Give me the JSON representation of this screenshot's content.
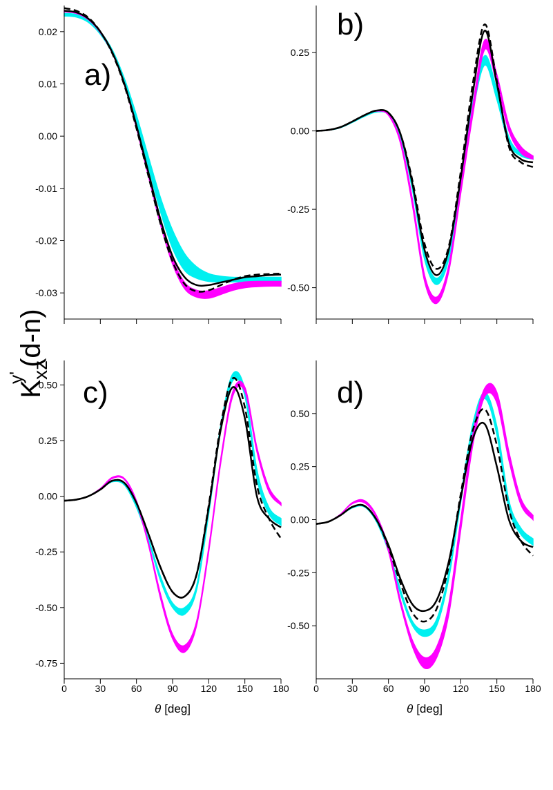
{
  "figure": {
    "ylabel": {
      "main": "K",
      "sub": "xz",
      "sup": "y'",
      "rest": "(d-n)"
    }
  },
  "chart_data": [
    {
      "type": "band-line",
      "panel_label": "a)",
      "show_xtick_labels": false,
      "x": [
        0,
        10,
        20,
        30,
        40,
        50,
        60,
        70,
        80,
        90,
        100,
        110,
        120,
        130,
        140,
        150,
        160,
        170,
        180
      ],
      "xlim": [
        0,
        180
      ],
      "xticks": [
        0,
        30,
        60,
        90,
        120,
        150,
        180
      ],
      "ylim": [
        -0.035,
        0.025
      ],
      "yticks": [
        -0.03,
        -0.02,
        -0.01,
        {
          "value": 0,
          "label": "0.00"
        },
        0.01,
        0.02
      ],
      "series": [
        {
          "kind": "band",
          "color": "#00f0f0",
          "lower": [
            0.023,
            0.0228,
            0.0218,
            0.0195,
            0.0158,
            0.01,
            0.0025,
            -0.006,
            -0.0145,
            -0.0215,
            -0.0257,
            -0.0272,
            -0.0278,
            -0.0279,
            -0.0279,
            -0.0279,
            -0.0279,
            -0.0279,
            -0.0279
          ],
          "upper": [
            0.0235,
            0.0233,
            0.0222,
            0.02,
            0.0165,
            0.011,
            0.004,
            -0.004,
            -0.0118,
            -0.018,
            -0.0225,
            -0.025,
            -0.0263,
            -0.0268,
            -0.027,
            -0.027,
            -0.027,
            -0.027,
            -0.027
          ]
        },
        {
          "kind": "band",
          "color": "#ff00ff",
          "lower": [
            0.0238,
            0.0235,
            0.0223,
            0.0198,
            0.0158,
            0.0098,
            0.0015,
            -0.0078,
            -0.017,
            -0.0245,
            -0.0292,
            -0.0308,
            -0.031,
            -0.0303,
            -0.0295,
            -0.029,
            -0.0288,
            -0.0287,
            -0.0287
          ],
          "upper": [
            0.024,
            0.0237,
            0.0225,
            0.02,
            0.016,
            0.01,
            0.0018,
            -0.0073,
            -0.0163,
            -0.0235,
            -0.028,
            -0.0295,
            -0.0296,
            -0.029,
            -0.0283,
            -0.0279,
            -0.0278,
            -0.0278,
            -0.0278
          ]
        },
        {
          "kind": "line",
          "color": "#000000",
          "dash": false,
          "values": [
            0.024,
            0.0237,
            0.0225,
            0.02,
            0.016,
            0.01,
            0.002,
            -0.007,
            -0.016,
            -0.023,
            -0.027,
            -0.0285,
            -0.0285,
            -0.028,
            -0.0275,
            -0.027,
            -0.0268,
            -0.0266,
            -0.0265
          ]
        },
        {
          "kind": "line",
          "color": "#000000",
          "dash": true,
          "values": [
            0.0245,
            0.024,
            0.0227,
            0.02,
            0.0158,
            0.0097,
            0.0015,
            -0.0077,
            -0.0168,
            -0.024,
            -0.0283,
            -0.0297,
            -0.0295,
            -0.0285,
            -0.0275,
            -0.0268,
            -0.0265,
            -0.0264,
            -0.0263
          ]
        }
      ]
    },
    {
      "type": "band-line",
      "panel_label": "b)",
      "show_xtick_labels": false,
      "x": [
        0,
        10,
        20,
        30,
        40,
        50,
        60,
        70,
        80,
        90,
        100,
        110,
        120,
        130,
        140,
        150,
        160,
        170,
        180
      ],
      "xlim": [
        0,
        180
      ],
      "xticks": [
        0,
        30,
        60,
        90,
        120,
        150,
        180
      ],
      "ylim": [
        -0.6,
        0.4
      ],
      "yticks": [
        {
          "value": -0.5,
          "label": "-0.50"
        },
        -0.25,
        {
          "value": 0,
          "label": "0.00"
        },
        0.25
      ],
      "series": [
        {
          "kind": "band",
          "color": "#00f0f0",
          "lower": [
            0,
            0.002,
            0.01,
            0.027,
            0.046,
            0.06,
            0.052,
            -0.02,
            -0.19,
            -0.41,
            -0.49,
            -0.41,
            -0.18,
            0.06,
            0.21,
            0.1,
            -0.04,
            -0.08,
            -0.09
          ],
          "upper": [
            0,
            0.003,
            0.012,
            0.03,
            0.05,
            0.064,
            0.057,
            -0.01,
            -0.17,
            -0.39,
            -0.47,
            -0.39,
            -0.16,
            0.09,
            0.24,
            0.13,
            -0.02,
            -0.07,
            -0.08
          ]
        },
        {
          "kind": "band",
          "color": "#ff00ff",
          "lower": [
            0,
            0.003,
            0.012,
            0.03,
            0.05,
            0.063,
            0.05,
            -0.04,
            -0.24,
            -0.48,
            -0.55,
            -0.45,
            -0.2,
            0.05,
            0.26,
            0.15,
            0.0,
            -0.07,
            -0.09
          ],
          "upper": [
            0,
            0.003,
            0.012,
            0.03,
            0.05,
            0.064,
            0.053,
            -0.03,
            -0.22,
            -0.46,
            -0.53,
            -0.43,
            -0.18,
            0.08,
            0.29,
            0.18,
            0.02,
            -0.05,
            -0.08
          ]
        },
        {
          "kind": "line",
          "color": "#000000",
          "dash": false,
          "values": [
            0,
            0.003,
            0.012,
            0.03,
            0.05,
            0.065,
            0.058,
            -0.01,
            -0.17,
            -0.38,
            -0.46,
            -0.38,
            -0.15,
            0.12,
            0.32,
            0.15,
            -0.04,
            -0.09,
            -0.1
          ]
        },
        {
          "kind": "line",
          "color": "#000000",
          "dash": true,
          "values": [
            0,
            0.003,
            0.012,
            0.03,
            0.05,
            0.065,
            0.058,
            -0.01,
            -0.16,
            -0.36,
            -0.44,
            -0.37,
            -0.13,
            0.15,
            0.34,
            0.16,
            -0.05,
            -0.1,
            -0.115
          ]
        }
      ]
    },
    {
      "type": "band-line",
      "panel_label": "c)",
      "show_xtick_labels": true,
      "xlabel": {
        "symbol": "θ",
        "unit": "[deg]"
      },
      "x": [
        0,
        10,
        20,
        30,
        40,
        50,
        60,
        70,
        80,
        90,
        100,
        110,
        120,
        130,
        140,
        150,
        160,
        170,
        180
      ],
      "xlim": [
        0,
        180
      ],
      "xticks": [
        0,
        30,
        60,
        90,
        120,
        150,
        180
      ],
      "ylim": [
        -0.82,
        0.61
      ],
      "yticks": [
        -0.75,
        {
          "value": -0.5,
          "label": "-0.50"
        },
        -0.25,
        {
          "value": 0,
          "label": "0.00"
        },
        0.25,
        {
          "value": 0.5,
          "label": "0.50"
        }
      ],
      "series": [
        {
          "kind": "band",
          "color": "#00f0f0",
          "lower": [
            -0.02,
            -0.015,
            0.0,
            0.03,
            0.065,
            0.05,
            -0.05,
            -0.2,
            -0.38,
            -0.5,
            -0.53,
            -0.42,
            -0.08,
            0.3,
            0.52,
            0.45,
            0.08,
            -0.08,
            -0.13
          ],
          "upper": [
            -0.02,
            -0.015,
            0.0,
            0.03,
            0.07,
            0.055,
            -0.04,
            -0.19,
            -0.36,
            -0.48,
            -0.5,
            -0.4,
            -0.06,
            0.32,
            0.55,
            0.48,
            0.12,
            -0.05,
            -0.1
          ]
        },
        {
          "kind": "band",
          "color": "#ff00ff",
          "lower": [
            -0.02,
            -0.015,
            0.0,
            0.035,
            0.08,
            0.075,
            -0.03,
            -0.22,
            -0.46,
            -0.64,
            -0.7,
            -0.58,
            -0.25,
            0.15,
            0.45,
            0.47,
            0.2,
            0.02,
            -0.04
          ],
          "upper": [
            -0.02,
            -0.015,
            0.0,
            0.035,
            0.085,
            0.08,
            -0.02,
            -0.21,
            -0.44,
            -0.62,
            -0.67,
            -0.56,
            -0.23,
            0.17,
            0.47,
            0.49,
            0.22,
            0.04,
            -0.03
          ]
        },
        {
          "kind": "line",
          "color": "#000000",
          "dash": false,
          "values": [
            -0.02,
            -0.015,
            0.0,
            0.03,
            0.07,
            0.06,
            -0.03,
            -0.17,
            -0.32,
            -0.43,
            -0.45,
            -0.35,
            -0.05,
            0.3,
            0.49,
            0.35,
            0.0,
            -0.1,
            -0.14
          ]
        },
        {
          "kind": "line",
          "color": "#000000",
          "dash": true,
          "values": [
            -0.02,
            -0.015,
            0.0,
            0.03,
            0.07,
            0.06,
            -0.03,
            -0.17,
            -0.32,
            -0.43,
            -0.45,
            -0.35,
            -0.04,
            0.32,
            0.53,
            0.4,
            0.05,
            -0.1,
            -0.19
          ]
        }
      ]
    },
    {
      "type": "band-line",
      "panel_label": "d)",
      "show_xtick_labels": true,
      "xlabel": {
        "symbol": "θ",
        "unit": "[deg]"
      },
      "x": [
        0,
        10,
        20,
        30,
        40,
        50,
        60,
        70,
        80,
        90,
        100,
        110,
        120,
        130,
        140,
        150,
        160,
        170,
        180
      ],
      "xlim": [
        0,
        180
      ],
      "xticks": [
        0,
        30,
        60,
        90,
        120,
        150,
        180
      ],
      "ylim": [
        -0.75,
        0.75
      ],
      "yticks": [
        {
          "value": -0.5,
          "label": "-0.50"
        },
        -0.25,
        {
          "value": 0,
          "label": "0.00"
        },
        0.25,
        {
          "value": 0.5,
          "label": "0.50"
        }
      ],
      "series": [
        {
          "kind": "band",
          "color": "#00f0f0",
          "lower": [
            -0.02,
            -0.01,
            0.02,
            0.055,
            0.06,
            -0.01,
            -0.15,
            -0.35,
            -0.5,
            -0.55,
            -0.5,
            -0.28,
            0.08,
            0.42,
            0.57,
            0.4,
            0.05,
            -0.07,
            -0.12
          ],
          "upper": [
            -0.02,
            -0.01,
            0.02,
            0.06,
            0.065,
            0.0,
            -0.14,
            -0.33,
            -0.48,
            -0.52,
            -0.47,
            -0.25,
            0.11,
            0.45,
            0.6,
            0.44,
            0.09,
            -0.04,
            -0.09
          ]
        },
        {
          "kind": "band",
          "color": "#ff00ff",
          "lower": [
            -0.02,
            -0.01,
            0.025,
            0.075,
            0.08,
            0.01,
            -0.15,
            -0.4,
            -0.6,
            -0.7,
            -0.65,
            -0.45,
            -0.05,
            0.35,
            0.58,
            0.55,
            0.28,
            0.07,
            0.0
          ],
          "upper": [
            -0.02,
            -0.01,
            0.025,
            0.08,
            0.09,
            0.02,
            -0.13,
            -0.38,
            -0.57,
            -0.65,
            -0.6,
            -0.4,
            0.0,
            0.4,
            0.62,
            0.6,
            0.32,
            0.1,
            0.02
          ]
        },
        {
          "kind": "line",
          "color": "#000000",
          "dash": false,
          "values": [
            -0.02,
            -0.01,
            0.02,
            0.06,
            0.065,
            0.0,
            -0.12,
            -0.28,
            -0.4,
            -0.43,
            -0.38,
            -0.2,
            0.1,
            0.38,
            0.45,
            0.25,
            0.0,
            -0.1,
            -0.13
          ]
        },
        {
          "kind": "line",
          "color": "#000000",
          "dash": true,
          "values": [
            -0.02,
            -0.01,
            0.02,
            0.06,
            0.065,
            0.0,
            -0.13,
            -0.3,
            -0.44,
            -0.48,
            -0.42,
            -0.22,
            0.12,
            0.42,
            0.52,
            0.35,
            0.05,
            -0.1,
            -0.17
          ]
        }
      ]
    }
  ]
}
